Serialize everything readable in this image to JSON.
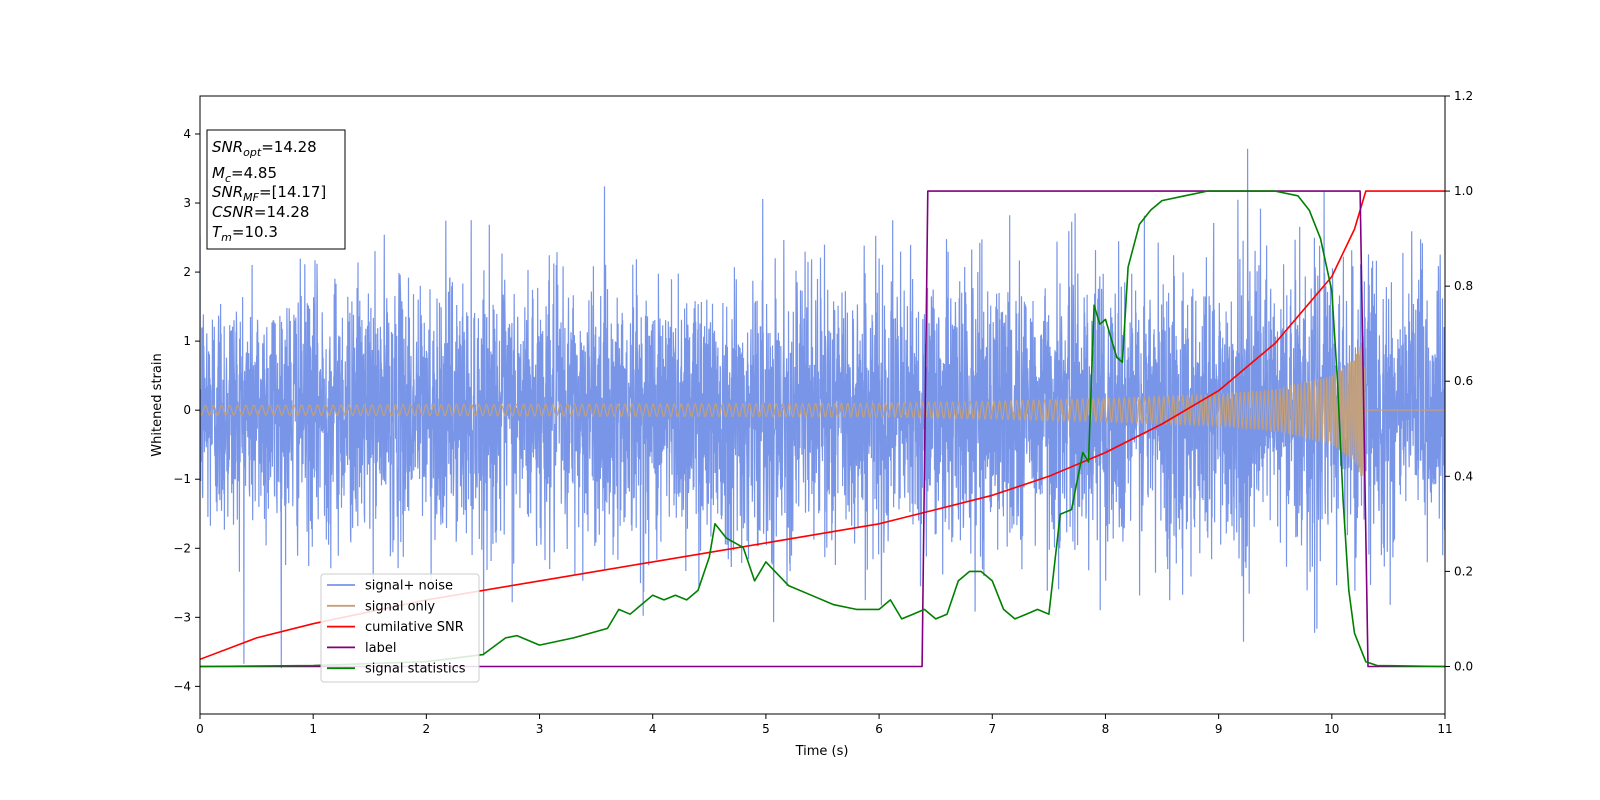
{
  "chart_data": {
    "type": "line",
    "xlabel": "Time (s)",
    "ylabel": "Whitened strain",
    "xlim": [
      0,
      11
    ],
    "ylim_left": [
      -4.4,
      4.55
    ],
    "ylim_right": [
      -0.1,
      1.2
    ],
    "x_ticks": [
      0,
      1,
      2,
      3,
      4,
      5,
      6,
      7,
      8,
      9,
      10,
      11
    ],
    "y_ticks_left": [
      -4,
      -3,
      -2,
      -1,
      0,
      1,
      2,
      3,
      4
    ],
    "y_ticks_right": [
      0.0,
      0.2,
      0.4,
      0.6,
      0.8,
      1.0,
      1.2
    ],
    "grid": false,
    "legend_placement": "lower-left",
    "annotation": {
      "lines": [
        {
          "base": "SNR",
          "sub": "opt",
          "value": "=14.28"
        },
        {
          "base": "M",
          "sub": "c",
          "value": "=4.85"
        },
        {
          "base": "SNR",
          "sub": "MF",
          "value": "=[14.17]"
        },
        {
          "base": "CSNR",
          "sub": "",
          "value": "=14.28"
        },
        {
          "base": "T",
          "sub": "m",
          "value": "=10.3"
        }
      ]
    },
    "series": [
      {
        "name": "signal+ noise",
        "axis": "left",
        "color": "#7895e8",
        "description_kind": "noise",
        "envelope": {
          "x": [
            0,
            2,
            4,
            6,
            8,
            9,
            10,
            11
          ],
          "typical_abs": [
            2.0,
            2.0,
            2.1,
            2.1,
            2.2,
            2.3,
            2.3,
            2.2
          ],
          "peak_abs": [
            3.7,
            3.8,
            3.8,
            3.9,
            3.9,
            4.1,
            4.15,
            4.1
          ]
        }
      },
      {
        "name": "signal only",
        "axis": "left",
        "color": "#c4a07a",
        "description_kind": "chirp",
        "envelope": {
          "x": [
            0,
            2,
            4,
            6,
            7,
            8,
            9,
            9.5,
            10,
            10.2,
            10.28,
            10.3,
            11
          ],
          "amplitude": [
            0.07,
            0.08,
            0.09,
            0.1,
            0.13,
            0.17,
            0.23,
            0.3,
            0.5,
            0.75,
            1.05,
            0.02,
            0.02
          ]
        }
      },
      {
        "name": "cumilative SNR",
        "axis": "right",
        "color": "#ff0000",
        "x": [
          0,
          0.5,
          1,
          2,
          3,
          4,
          5,
          6,
          6.5,
          7,
          7.5,
          8,
          8.5,
          9,
          9.5,
          10,
          10.2,
          10.3,
          11
        ],
        "y": [
          0.015,
          0.06,
          0.09,
          0.14,
          0.18,
          0.22,
          0.26,
          0.3,
          0.33,
          0.36,
          0.4,
          0.45,
          0.51,
          0.58,
          0.68,
          0.82,
          0.92,
          1.0,
          1.0
        ]
      },
      {
        "name": "label",
        "axis": "right",
        "color": "#800080",
        "x": [
          0,
          6.38,
          6.43,
          10.25,
          10.32,
          11
        ],
        "y": [
          0.0,
          0.0,
          1.0,
          1.0,
          0.0,
          0.0
        ]
      },
      {
        "name": "signal statistics",
        "axis": "right",
        "color": "#008000",
        "x": [
          0,
          1,
          2,
          2.5,
          2.7,
          2.8,
          3.0,
          3.3,
          3.6,
          3.7,
          3.8,
          4.0,
          4.1,
          4.2,
          4.3,
          4.4,
          4.5,
          4.55,
          4.65,
          4.8,
          4.9,
          5.0,
          5.2,
          5.4,
          5.6,
          5.8,
          6.0,
          6.1,
          6.2,
          6.3,
          6.4,
          6.5,
          6.6,
          6.7,
          6.8,
          6.9,
          7.0,
          7.1,
          7.2,
          7.3,
          7.4,
          7.5,
          7.6,
          7.7,
          7.8,
          7.85,
          7.9,
          7.95,
          8.0,
          8.1,
          8.15,
          8.2,
          8.3,
          8.4,
          8.5,
          8.7,
          8.9,
          9.1,
          9.3,
          9.5,
          9.7,
          9.8,
          9.9,
          10.0,
          10.05,
          10.1,
          10.15,
          10.2,
          10.3,
          10.4,
          11
        ],
        "y": [
          0.0,
          0.002,
          0.01,
          0.025,
          0.06,
          0.065,
          0.045,
          0.06,
          0.08,
          0.12,
          0.11,
          0.15,
          0.14,
          0.15,
          0.14,
          0.16,
          0.23,
          0.3,
          0.27,
          0.25,
          0.18,
          0.22,
          0.17,
          0.15,
          0.13,
          0.12,
          0.12,
          0.14,
          0.1,
          0.11,
          0.12,
          0.1,
          0.11,
          0.18,
          0.2,
          0.2,
          0.18,
          0.12,
          0.1,
          0.11,
          0.12,
          0.11,
          0.32,
          0.33,
          0.45,
          0.43,
          0.76,
          0.72,
          0.73,
          0.65,
          0.64,
          0.84,
          0.93,
          0.96,
          0.98,
          0.99,
          1.0,
          1.0,
          1.0,
          1.0,
          0.99,
          0.96,
          0.9,
          0.79,
          0.6,
          0.35,
          0.16,
          0.07,
          0.01,
          0.002,
          0.0
        ]
      }
    ]
  }
}
